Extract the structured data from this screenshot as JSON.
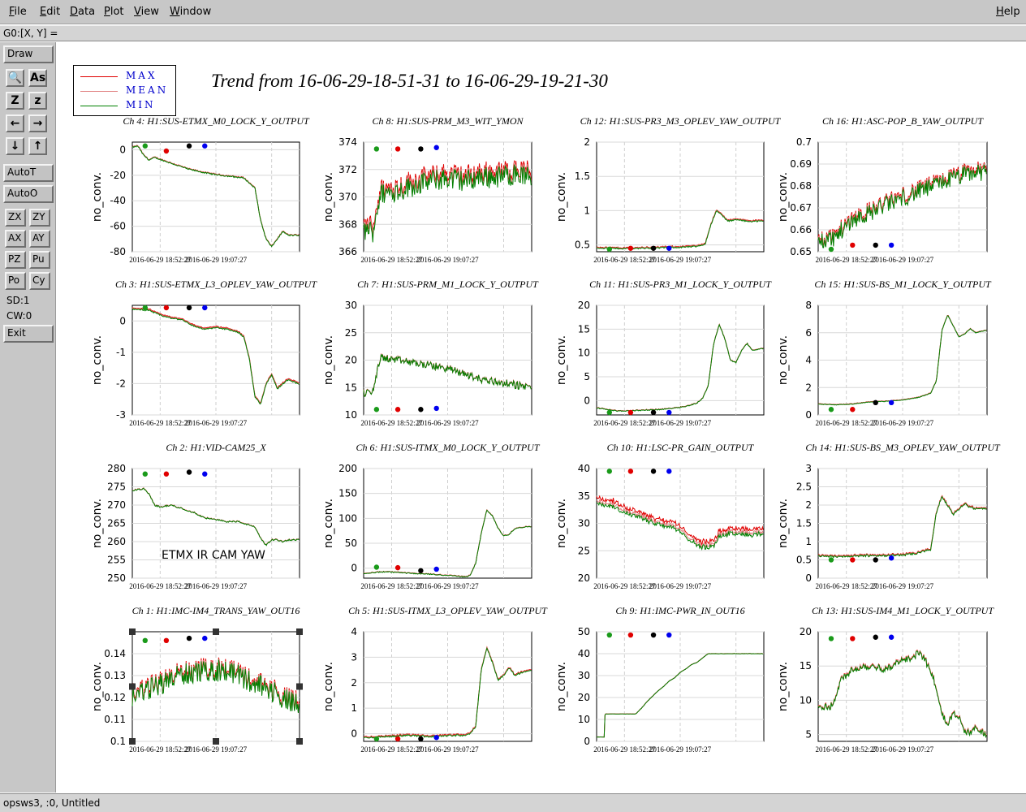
{
  "menu": {
    "left": [
      "File",
      "Edit",
      "Data",
      "Plot",
      "View",
      "Window"
    ],
    "help": "Help"
  },
  "coord_readout": "G0:[X, Y] =",
  "sidebar": {
    "draw": "Draw",
    "icon_rows": [
      [
        "magnifier-icon",
        "text-size-icon"
      ],
      [
        "zoom-in-icon",
        "zoom-out-icon"
      ],
      [
        "arrow-left-icon",
        "arrow-right-icon"
      ],
      [
        "arrow-down-icon",
        "arrow-up-icon"
      ]
    ],
    "icon_glyphs": [
      [
        "🔍",
        "As"
      ],
      [
        "Z",
        "z"
      ],
      [
        "←",
        "→"
      ],
      [
        "↓",
        "↑"
      ]
    ],
    "autot": "AutoT",
    "autoo": "AutoO",
    "pairs": [
      [
        "ZX",
        "ZY"
      ],
      [
        "AX",
        "AY"
      ],
      [
        "PZ",
        "Pu"
      ],
      [
        "Po",
        "Cy"
      ]
    ],
    "sd": "SD:1",
    "cw": "CW:0",
    "exit": "Exit"
  },
  "status": "opsws3, :0, Untitled",
  "legend": {
    "items": [
      {
        "label": "MAX",
        "color": "#e00000"
      },
      {
        "label": "MEAN",
        "color": "#e08080"
      },
      {
        "label": "MIN",
        "color": "#008000"
      }
    ]
  },
  "title": "Trend from 16-06-29-18-51-31 to 16-06-29-19-21-30",
  "chart_data": [
    {
      "type": "line",
      "title": "Ch 4: H1:SUS-ETMX_M0_LOCK_Y_OUTPUT",
      "ylabel": "no_conv.",
      "yticks": [
        "0",
        "-20",
        "-40",
        "-60",
        "-80"
      ],
      "ylim": [
        -80,
        6
      ],
      "xticks": [
        "2016-06-29 18:52:27",
        "2016-06-29 19:07:27"
      ],
      "x": [
        0,
        1,
        2,
        3,
        4,
        6,
        8,
        10,
        13,
        16,
        18,
        20,
        22,
        23,
        24,
        25,
        26,
        27,
        28,
        29.9
      ],
      "y": [
        2,
        3,
        -4,
        -8,
        -6,
        -9,
        -12,
        -15,
        -18,
        -20,
        -21,
        -22,
        -30,
        -55,
        -70,
        -76,
        -70,
        -64,
        -67,
        -67
      ],
      "markers": {
        "green": 3,
        "red": -1,
        "black": 3,
        "blue": 3
      },
      "noise": 0.5,
      "spread": 0.3
    },
    {
      "type": "line",
      "title": "Ch 8: H1:SUS-PRM_M3_WIT_YMON",
      "ylabel": "no_conv.",
      "yticks": [
        "374",
        "372",
        "370",
        "368",
        "366"
      ],
      "ylim": [
        366,
        374
      ],
      "xticks": [
        "2016-06-29 18:52:27",
        "2016-06-29 19:07:27"
      ],
      "x": [
        0,
        1,
        1.5,
        2,
        3,
        6,
        9,
        12,
        15,
        18,
        21,
        24,
        27,
        29.9
      ],
      "y": [
        367.5,
        368,
        367.3,
        368.5,
        370.3,
        370.6,
        371,
        371.3,
        371.5,
        371.3,
        371.6,
        371.6,
        371.8,
        371.6
      ],
      "markers": {
        "green": 373.5,
        "red": 373.5,
        "black": 373.5,
        "blue": 373.6
      },
      "noise": 0.8,
      "spread": 0.3
    },
    {
      "type": "line",
      "title": "Ch 12: H1:SUS-PR3_M3_OPLEV_YAW_OUTPUT",
      "ylabel": "no_conv.",
      "yticks": [
        "2",
        "1.5",
        "1",
        "0.5"
      ],
      "ylim": [
        0.4,
        2
      ],
      "xticks": [
        "2016-06-29 18:52:27",
        "2016-06-29 19:07:27"
      ],
      "x": [
        0,
        5,
        10,
        15,
        18,
        19.5,
        20.5,
        21.5,
        22.5,
        23.5,
        25,
        27,
        29.9
      ],
      "y": [
        0.46,
        0.45,
        0.46,
        0.47,
        0.48,
        0.52,
        0.8,
        1.0,
        0.94,
        0.85,
        0.87,
        0.85,
        0.85
      ],
      "markers": {
        "green": 0.43,
        "red": 0.45,
        "black": 0.45,
        "blue": 0.45
      },
      "noise": 0.01,
      "spread": 0.01
    },
    {
      "type": "line",
      "title": "Ch 16: H1:ASC-POP_B_YAW_OUTPUT",
      "ylabel": "no_conv.",
      "yticks": [
        "0.7",
        "0.69",
        "0.68",
        "0.67",
        "0.66",
        "0.65"
      ],
      "ylim": [
        0.65,
        0.7
      ],
      "xticks": [
        "2016-06-29 18:52:27",
        "2016-06-29 19:07:27"
      ],
      "x": [
        0,
        3,
        6,
        9,
        12,
        15,
        18,
        21,
        24,
        27,
        29.9
      ],
      "y": [
        0.655,
        0.657,
        0.665,
        0.668,
        0.672,
        0.675,
        0.678,
        0.681,
        0.684,
        0.686,
        0.687
      ],
      "markers": {
        "green": 0.651,
        "red": 0.653,
        "black": 0.653,
        "blue": 0.653
      },
      "noise": 0.004,
      "spread": 0.001
    },
    {
      "type": "line",
      "title": "Ch 3: H1:SUS-ETMX_L3_OPLEV_YAW_OUTPUT",
      "ylabel": "no_conv.",
      "yticks": [
        "0",
        "-1",
        "-2",
        "-3"
      ],
      "ylim": [
        -3,
        0.5
      ],
      "xticks": [
        "2016-06-29 18:52:27",
        "2016-06-29 19:07:27"
      ],
      "x": [
        0,
        3,
        5,
        7,
        9,
        11,
        13,
        15,
        17,
        19,
        20,
        21,
        22,
        23,
        24,
        25,
        26,
        27,
        28,
        29.9
      ],
      "y": [
        0.4,
        0.35,
        0.2,
        0.1,
        0.05,
        -0.15,
        -0.25,
        -0.2,
        -0.25,
        -0.35,
        -0.5,
        -1.2,
        -2.4,
        -2.65,
        -2,
        -1.7,
        -2.15,
        -2.0,
        -1.85,
        -2.0
      ],
      "markers": {
        "green": 0.45,
        "red": 0.45,
        "black": 0.45,
        "blue": 0.45
      },
      "noise": 0.02,
      "spread": 0.03
    },
    {
      "type": "line",
      "title": "Ch 7: H1:SUS-PRM_M1_LOCK_Y_OUTPUT",
      "ylabel": "no_conv.",
      "yticks": [
        "30",
        "25",
        "20",
        "15",
        "10"
      ],
      "ylim": [
        10,
        30
      ],
      "xticks": [
        "2016-06-29 18:52:27",
        "2016-06-29 19:07:27"
      ],
      "x": [
        0,
        1.5,
        2,
        3,
        6,
        9,
        12,
        15,
        18,
        21,
        24,
        27,
        29.9
      ],
      "y": [
        14,
        14,
        16,
        20.5,
        20,
        19.5,
        19,
        18.5,
        17.5,
        16.5,
        16,
        15.5,
        15
      ],
      "markers": {
        "green": 11,
        "red": 11,
        "black": 11,
        "blue": 11.2
      },
      "noise": 0.7,
      "spread": 0.05
    },
    {
      "type": "line",
      "title": "Ch 11: H1:SUS-PR3_M1_LOCK_Y_OUTPUT",
      "ylabel": "no_conv.",
      "yticks": [
        "20",
        "15",
        "10",
        "5",
        "0"
      ],
      "ylim": [
        -3,
        20
      ],
      "xticks": [
        "2016-06-29 18:52:27",
        "2016-06-29 19:07:27"
      ],
      "x": [
        0,
        4,
        8,
        12,
        16,
        18,
        19,
        20,
        21,
        22,
        23,
        24,
        25,
        26,
        27,
        28,
        29.9
      ],
      "y": [
        -1.5,
        -2.2,
        -2,
        -1.8,
        -1.2,
        -0.5,
        0.5,
        3,
        12,
        16,
        13,
        8.5,
        8,
        10.5,
        12,
        10.5,
        11
      ],
      "markers": {
        "green": -3,
        "red": -3,
        "black": -3,
        "blue": -3
      },
      "noise": 0.1,
      "spread": 0.05
    },
    {
      "type": "line",
      "title": "Ch 15: H1:SUS-BS_M1_LOCK_Y_OUTPUT",
      "ylabel": "no_conv.",
      "yticks": [
        "8",
        "6",
        "4",
        "2",
        "0"
      ],
      "ylim": [
        0,
        8
      ],
      "xticks": [
        "2016-06-29 18:52:27",
        "2016-06-29 19:07:27"
      ],
      "x": [
        0,
        3,
        6,
        9,
        12,
        15,
        18,
        20,
        21,
        22,
        23,
        24,
        25,
        26,
        27,
        28,
        29.9
      ],
      "y": [
        0.8,
        0.75,
        0.8,
        0.95,
        1.0,
        1.1,
        1.3,
        1.6,
        2.5,
        6.2,
        7.3,
        6.5,
        5.7,
        5.9,
        6.3,
        6.0,
        6.2
      ],
      "markers": {
        "green": 0.4,
        "red": 0.4,
        "black": 0.9,
        "blue": 0.9
      },
      "noise": 0.02,
      "spread": 0.02
    },
    {
      "type": "line",
      "title": "Ch 2: H1:VID-CAM25_X",
      "ylabel": "no_conv.",
      "yticks": [
        "280",
        "275",
        "270",
        "265",
        "260",
        "255",
        "250"
      ],
      "ylim": [
        250,
        280
      ],
      "xticks": [
        "2016-06-29 18:52:27",
        "2016-06-29 19:07:27"
      ],
      "annotation": "ETMX IR CAM YAW",
      "x": [
        0,
        2,
        3,
        4,
        5,
        7,
        9,
        11,
        13,
        15,
        17,
        19,
        20,
        22,
        23,
        24,
        25,
        26,
        27,
        28,
        29.9
      ],
      "y": [
        274,
        274.5,
        273,
        270,
        269.5,
        270,
        269,
        268,
        266.5,
        266,
        265.5,
        265.5,
        265,
        264,
        261,
        259,
        260.5,
        260.5,
        260,
        260.5,
        260.5
      ],
      "markers": {
        "green": 278.5,
        "red": 278.5,
        "black": 279,
        "blue": 278.5
      },
      "noise": 0.2,
      "spread": 0.05
    },
    {
      "type": "line",
      "title": "Ch 6: H1:SUS-ITMX_M0_LOCK_Y_OUTPUT",
      "ylabel": "no_conv.",
      "yticks": [
        "200",
        "150",
        "100",
        "50",
        "0"
      ],
      "ylim": [
        -20,
        200
      ],
      "xticks": [
        "2016-06-29 18:52:27",
        "2016-06-29 19:07:27"
      ],
      "x": [
        0,
        4,
        8,
        12,
        16,
        18,
        19,
        20,
        21,
        22,
        23,
        24,
        25,
        26,
        27,
        28,
        29.9
      ],
      "y": [
        -10,
        -7,
        -10,
        -12,
        -15,
        -17,
        -15,
        10,
        70,
        117,
        105,
        80,
        65,
        68,
        80,
        82,
        84
      ],
      "markers": {
        "green": 2,
        "red": 1,
        "black": -5,
        "blue": -2
      },
      "noise": 1,
      "spread": 0.5
    },
    {
      "type": "line",
      "title": "Ch 10: H1:LSC-PR_GAIN_OUTPUT",
      "ylabel": "no_conv.",
      "yticks": [
        "40",
        "35",
        "30",
        "25",
        "20"
      ],
      "ylim": [
        20,
        40
      ],
      "xticks": [
        "2016-06-29 18:52:27",
        "2016-06-29 19:07:27"
      ],
      "x": [
        0,
        2,
        3,
        4,
        6,
        8,
        10,
        12,
        14,
        16,
        18,
        19,
        20,
        21,
        22,
        24,
        26,
        28,
        29.9
      ],
      "y": [
        34,
        33.6,
        33.5,
        33,
        32,
        31.5,
        30.5,
        30,
        29.5,
        28,
        26.5,
        26,
        26,
        26.3,
        28,
        28.5,
        28.5,
        28.3,
        28.5
      ],
      "markers": {
        "green": 39.5,
        "red": 39.5,
        "black": 39.5,
        "blue": 39.5
      },
      "noise": 0.4,
      "spread": 0.8
    },
    {
      "type": "line",
      "title": "Ch 14: H1:SUS-BS_M3_OPLEV_YAW_OUTPUT",
      "ylabel": "no_conv.",
      "yticks": [
        "3",
        "2.5",
        "2",
        "1.5",
        "1",
        "0.5",
        "0"
      ],
      "ylim": [
        0,
        3
      ],
      "xticks": [
        "2016-06-29 18:52:27",
        "2016-06-29 19:07:27"
      ],
      "x": [
        0,
        4,
        8,
        12,
        16,
        18,
        19,
        20,
        21,
        22,
        23,
        24,
        25,
        26,
        27,
        28,
        29.9
      ],
      "y": [
        0.62,
        0.6,
        0.62,
        0.63,
        0.65,
        0.7,
        0.75,
        0.8,
        1.8,
        2.25,
        2.0,
        1.75,
        1.9,
        2.05,
        1.95,
        1.9,
        1.9
      ],
      "markers": {
        "green": 0.5,
        "red": 0.5,
        "black": 0.5,
        "blue": 0.55
      },
      "noise": 0.03,
      "spread": 0.02
    },
    {
      "type": "line",
      "title": "Ch 1: H1:IMC-IM4_TRANS_YAW_OUT16",
      "ylabel": "no_conv.",
      "yticks": [
        "0.14",
        "0.13",
        "0.12",
        "0.11",
        "0.1"
      ],
      "ylim": [
        0.1,
        0.15
      ],
      "xticks": [
        "2016-06-29 18:52:27",
        "2016-06-29 19:07:27"
      ],
      "x": [
        0,
        3,
        6,
        9,
        12,
        15,
        18,
        21,
        24,
        27,
        29.9
      ],
      "y": [
        0.121,
        0.124,
        0.128,
        0.131,
        0.132,
        0.133,
        0.132,
        0.128,
        0.125,
        0.12,
        0.117
      ],
      "markers": {
        "green": 0.146,
        "red": 0.146,
        "black": 0.147,
        "blue": 0.147
      },
      "noise": 0.005,
      "spread": 0.001
    },
    {
      "type": "line",
      "title": "Ch 5: H1:SUS-ITMX_L3_OPLEV_YAW_OUTPUT",
      "ylabel": "no_conv.",
      "yticks": [
        "4",
        "3",
        "2",
        "1",
        "0"
      ],
      "ylim": [
        -0.3,
        4
      ],
      "xticks": [
        "2016-06-29 18:52:27",
        "2016-06-29 19:07:27"
      ],
      "x": [
        0,
        4,
        8,
        12,
        16,
        18,
        19,
        20,
        21,
        22,
        23,
        24,
        25,
        26,
        27,
        28,
        29.9
      ],
      "y": [
        -0.15,
        -0.1,
        -0.05,
        -0.1,
        -0.05,
        -0.05,
        0,
        0.3,
        2.5,
        3.4,
        2.8,
        2.1,
        2.3,
        2.6,
        2.3,
        2.4,
        2.5
      ],
      "markers": {
        "green": -0.25,
        "red": -0.25,
        "black": -0.25,
        "blue": -0.15
      },
      "noise": 0.03,
      "spread": 0.03
    },
    {
      "type": "line",
      "title": "Ch 9: H1:IMC-PWR_IN_OUT16",
      "ylabel": "no_conv.",
      "yticks": [
        "50",
        "40",
        "30",
        "20",
        "10",
        "0"
      ],
      "ylim": [
        0,
        50
      ],
      "xticks": [
        "2016-06-29 18:52:27",
        "2016-06-29 19:07:27"
      ],
      "x": [
        0,
        1.4,
        1.5,
        4,
        5,
        6,
        7,
        8,
        9,
        10,
        11,
        12,
        13,
        14,
        15,
        16,
        17,
        18,
        19,
        20,
        29.9
      ],
      "y": [
        2,
        2,
        12.5,
        12.5,
        12.5,
        12.5,
        12.5,
        15,
        18,
        20.5,
        23,
        25,
        27.5,
        29,
        31.5,
        33,
        35,
        36,
        38,
        40,
        40
      ],
      "markers": {
        "green": 48.5,
        "red": 48.5,
        "black": 48.5,
        "blue": 48.5
      },
      "noise": 0.05,
      "spread": 0.05
    },
    {
      "type": "line",
      "title": "Ch 13: H1:SUS-IM4_M1_LOCK_Y_OUTPUT",
      "ylabel": "no_conv.",
      "yticks": [
        "20",
        "15",
        "10",
        "5"
      ],
      "ylim": [
        4,
        20
      ],
      "xticks": [
        "2016-06-29 18:52:27",
        "2016-06-29 19:07:27"
      ],
      "x": [
        0,
        2,
        3,
        4,
        6,
        8,
        10,
        12,
        14,
        16,
        18,
        19,
        20,
        21,
        22,
        23,
        24,
        25,
        26,
        27,
        28,
        29.9
      ],
      "y": [
        9,
        9,
        10,
        13,
        14.5,
        15,
        15,
        14.5,
        15.5,
        16,
        17,
        16,
        14,
        12,
        8,
        6.5,
        8,
        7.5,
        5.5,
        5.2,
        6,
        5
      ],
      "markers": {
        "green": 19,
        "red": 19,
        "black": 19.2,
        "blue": 19.2
      },
      "noise": 0.5,
      "spread": 0.1
    }
  ]
}
